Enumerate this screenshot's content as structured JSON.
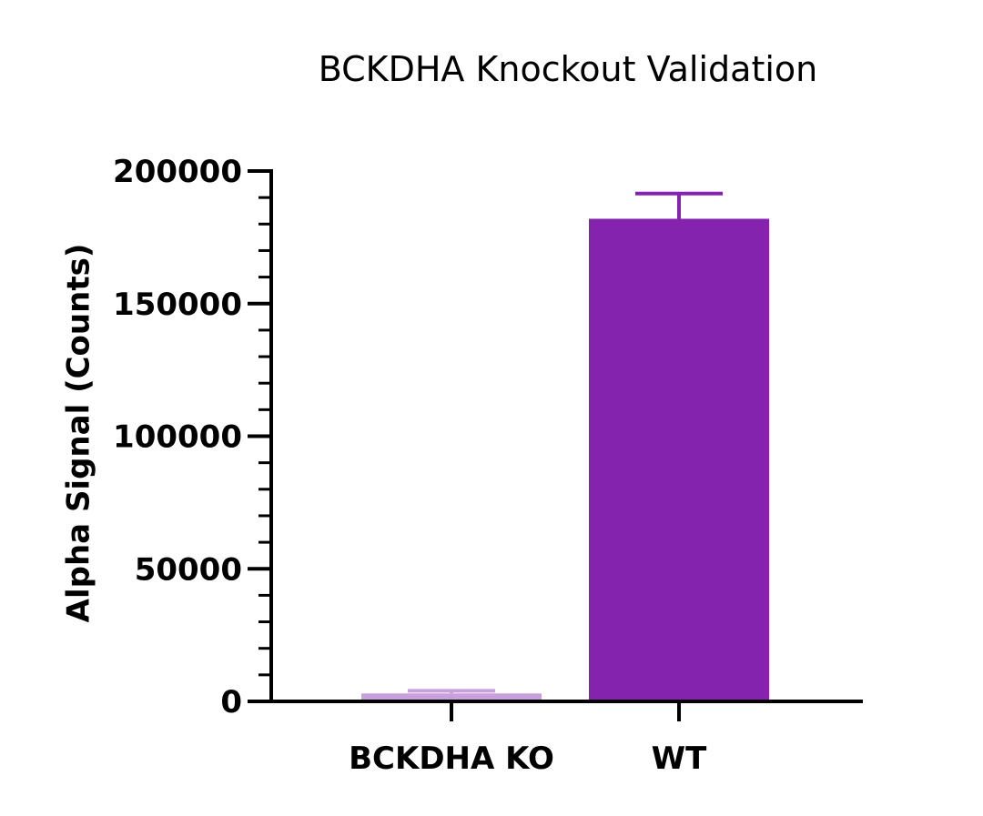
{
  "chart_data": {
    "type": "bar",
    "title": "BCKDHA Knockout Validation",
    "xlabel": "",
    "ylabel": "Alpha Signal (Counts)",
    "ylim": [
      0,
      200000
    ],
    "y_major_ticks": [
      0,
      50000,
      100000,
      150000,
      200000
    ],
    "y_tick_labels": [
      "0",
      "50000",
      "100000",
      "150000",
      "200000"
    ],
    "y_minor_step": 10000,
    "grid": false,
    "legend": "none",
    "categories": [
      "BCKDHA KO",
      "WT"
    ],
    "values": [
      3000,
      182000
    ],
    "errors": [
      1000,
      9500
    ],
    "colors": [
      "#c9a0dc",
      "#8424ae"
    ]
  }
}
